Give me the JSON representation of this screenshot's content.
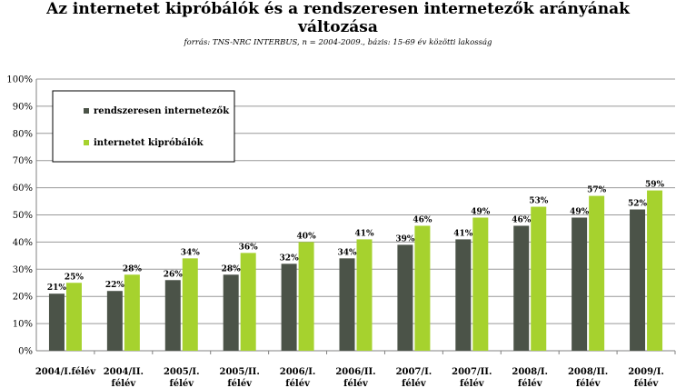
{
  "page": {
    "title_line1": "Az internetet kipróbálók és a rendszeresen internetezők arányának",
    "title_line2": "változása",
    "source": "forrás: TNS-NRC INTERBUS, n = 2004-2009., bázis: 15-69 év közötti lakosság"
  },
  "chart_data": {
    "type": "bar",
    "title": "Az internetet kipróbálók és a rendszeresen internetezők arányának változása",
    "subtitle": "forrás: TNS-NRC INTERBUS, n = 2004-2009., bázis: 15-69 év közötti lakosság",
    "categories": [
      [
        "2004/I.félév"
      ],
      [
        "2004/II.",
        "félév"
      ],
      [
        "2005/I.",
        "félév"
      ],
      [
        "2005/II.",
        "félév"
      ],
      [
        "2006/I.",
        "félév"
      ],
      [
        "2006/II.",
        "félév"
      ],
      [
        "2007/I.",
        "félév"
      ],
      [
        "2007/II.",
        "félév"
      ],
      [
        "2008/I.",
        "félév"
      ],
      [
        "2008/II.",
        "félév"
      ],
      [
        "2009/I.",
        "félév"
      ]
    ],
    "series": [
      {
        "name": "rendszeresen internetezők",
        "color": "#4b5348",
        "values": [
          21,
          22,
          26,
          28,
          32,
          34,
          39,
          41,
          46,
          49,
          52
        ],
        "labels": [
          "21%",
          "22%",
          "26%",
          "28%",
          "32%",
          "34%",
          "39%",
          "41%",
          "46%",
          "49%",
          "52%"
        ]
      },
      {
        "name": "internetet kipróbálók",
        "color": "#a6d22e",
        "values": [
          25,
          28,
          34,
          36,
          40,
          41,
          46,
          49,
          53,
          57,
          59
        ],
        "labels": [
          "25%",
          "28%",
          "34%",
          "36%",
          "40%",
          "41%",
          "46%",
          "49%",
          "53%",
          "57%",
          "59%"
        ]
      }
    ],
    "ylim": [
      0,
      100
    ],
    "yticks": [
      "0%",
      "10%",
      "20%",
      "30%",
      "40%",
      "50%",
      "60%",
      "70%",
      "80%",
      "90%",
      "100%"
    ],
    "xlabel": "",
    "ylabel": "",
    "grid": true,
    "legend": "top-left"
  }
}
